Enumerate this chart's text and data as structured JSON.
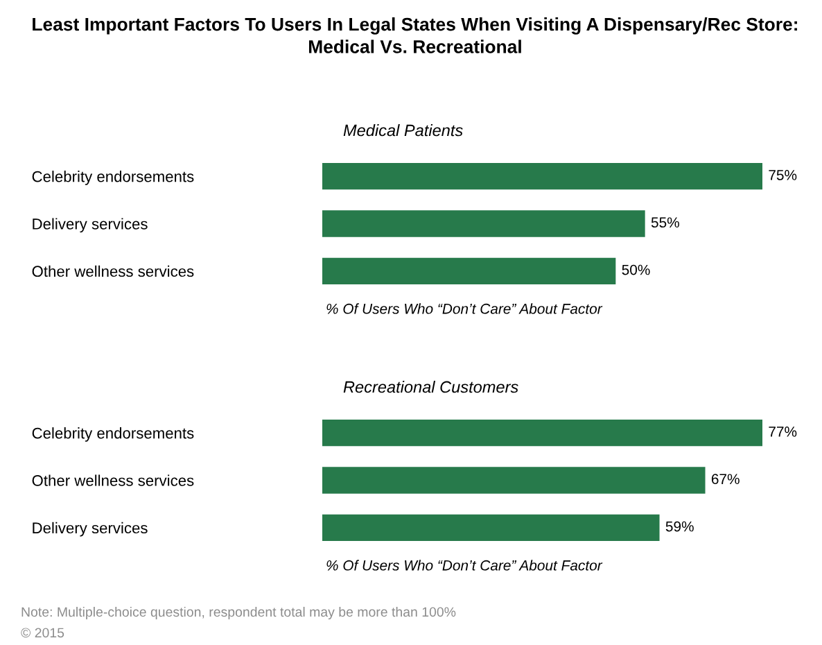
{
  "chart_data": [
    {
      "type": "bar",
      "orientation": "horizontal",
      "title": "Least Important Factors To Users In Legal States When Visiting A Dispensary/Rec Store: Medical Vs. Recreational",
      "subtitle": "Medical Patients",
      "xlabel": "% Of Users Who “Don’t Care” About Factor",
      "categories": [
        "Celebrity endorsements",
        "Delivery services",
        "Other wellness services"
      ],
      "values": [
        75,
        55,
        50
      ],
      "value_labels": [
        "75%",
        "55%",
        "50%"
      ],
      "color": "#277a4b",
      "grid": false,
      "legend": false
    },
    {
      "type": "bar",
      "orientation": "horizontal",
      "subtitle": "Recreational Customers",
      "xlabel": "% Of Users Who “Don’t Care” About Factor",
      "categories": [
        "Celebrity endorsements",
        "Other wellness services",
        "Delivery services"
      ],
      "values": [
        77,
        67,
        59
      ],
      "value_labels": [
        "77%",
        "67%",
        "59%"
      ],
      "color": "#277a4b",
      "grid": false,
      "legend": false,
      "annotations": [
        "Note: Multiple-choice question, respondent total may be more than 100%",
        "© 2015"
      ]
    }
  ]
}
